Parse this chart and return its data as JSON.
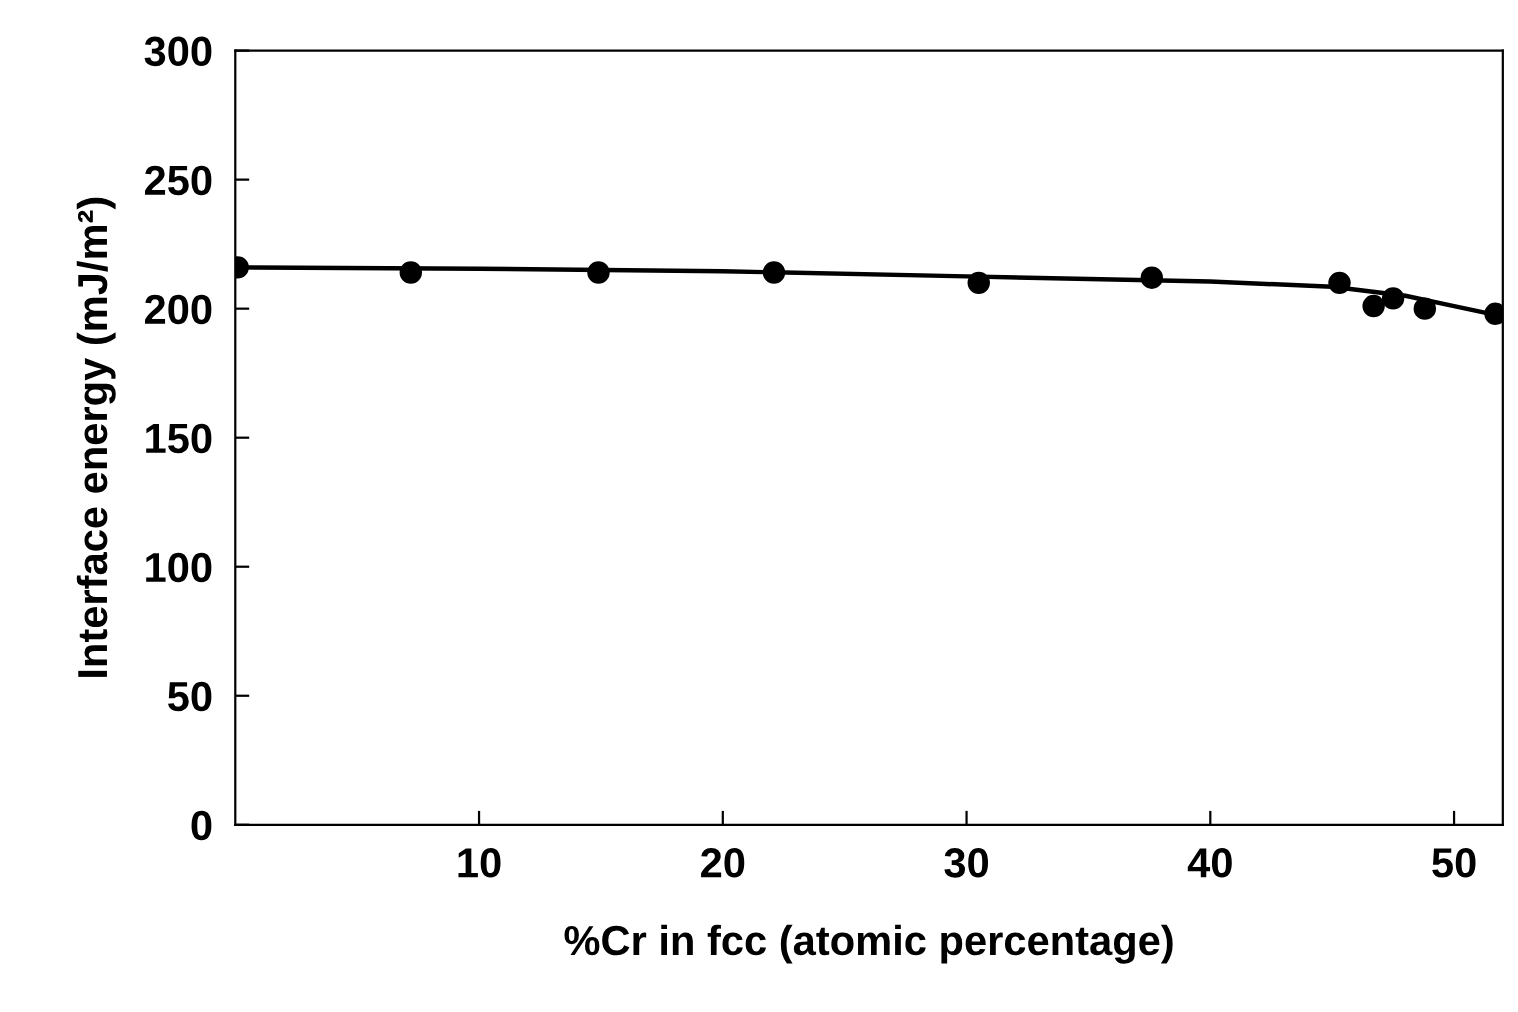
{
  "chart_data": {
    "type": "scatter",
    "xlabel": "%Cr in fcc (atomic percentage)",
    "ylabel": "Interface energy (mJ/m²)",
    "xlim": [
      0,
      52
    ],
    "xticks": [
      10,
      20,
      30,
      40,
      50
    ],
    "ylim": [
      0,
      300
    ],
    "yticks": [
      0,
      50,
      100,
      150,
      200,
      250,
      300
    ],
    "grid": false,
    "legend": false,
    "marker": "circle",
    "series": [
      {
        "color": "#000000",
        "x": [
          0.1,
          7.2,
          14.9,
          22.1,
          30.5,
          37.6,
          45.3,
          46.7,
          47.5,
          48.8,
          51.7
        ],
        "values": [
          216,
          214,
          214,
          214,
          210,
          212,
          210,
          201,
          204,
          200,
          198
        ]
      },
      {
        "type": "line",
        "color": "#000000",
        "line_style": "solid",
        "marker": "none",
        "x": [
          0,
          10,
          20,
          30,
          40,
          45,
          48,
          50,
          52
        ],
        "values": [
          216,
          215.5,
          214.5,
          212.5,
          210.5,
          208.5,
          205,
          201,
          197
        ]
      }
    ]
  }
}
